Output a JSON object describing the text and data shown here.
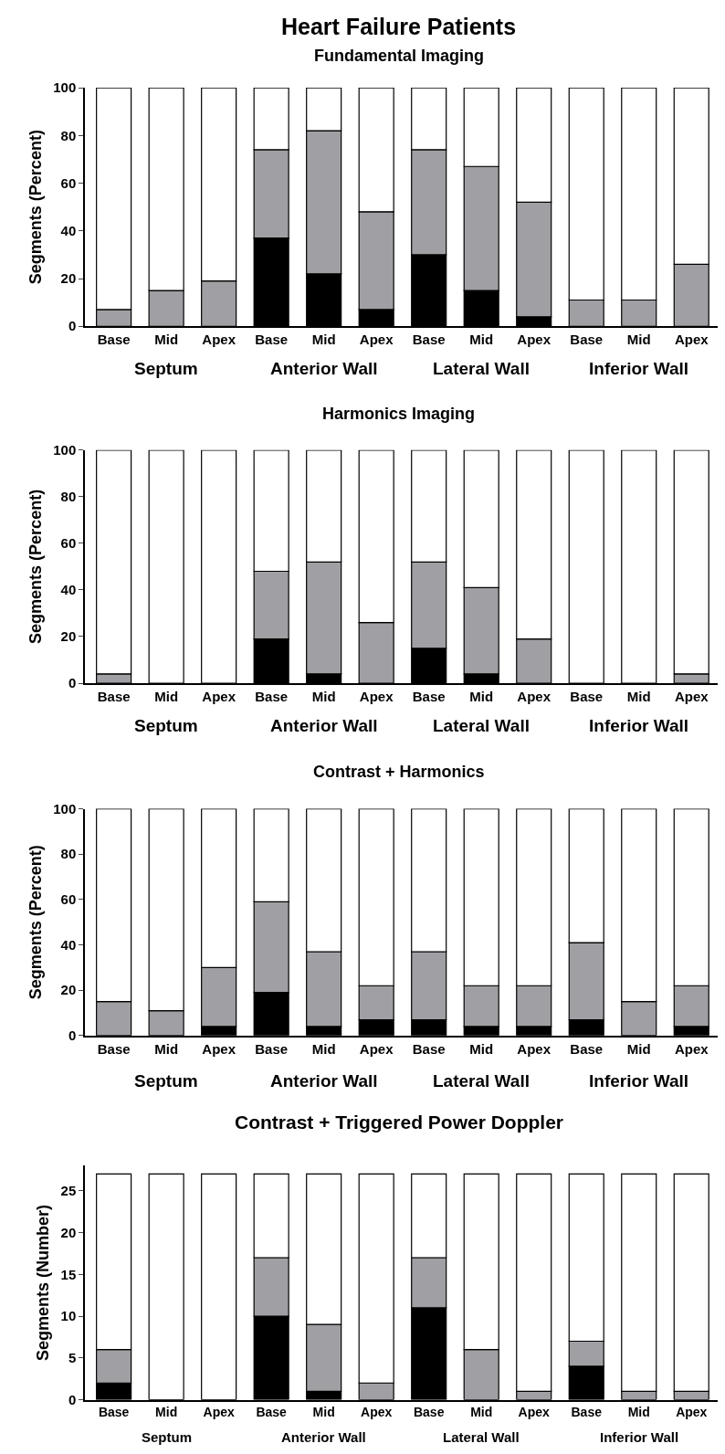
{
  "chart_data": [
    {
      "type": "bar",
      "stacked": true,
      "title": "Heart Failure Patients",
      "subtitle": "Fundamental Imaging",
      "ylabel": "Segments (Percent)",
      "ylim": [
        0,
        100
      ],
      "yticks": [
        0,
        20,
        40,
        60,
        80,
        100
      ],
      "categories": [
        "Base",
        "Mid",
        "Apex",
        "Base",
        "Mid",
        "Apex",
        "Base",
        "Mid",
        "Apex",
        "Base",
        "Mid",
        "Apex"
      ],
      "annotations": [
        "Septum",
        "Anterior Wall",
        "Lateral Wall",
        "Inferior Wall"
      ],
      "series": [
        {
          "color": "#000000",
          "values": [
            0,
            0,
            0,
            37,
            22,
            7,
            30,
            15,
            4,
            0,
            0,
            0
          ]
        },
        {
          "color": "#a0a0a4",
          "values": [
            7,
            15,
            19,
            37,
            60,
            41,
            44,
            52,
            48,
            11,
            11,
            26
          ]
        },
        {
          "color": "#ffffff",
          "values": [
            93,
            85,
            81,
            26,
            18,
            52,
            26,
            33,
            48,
            89,
            89,
            74
          ]
        }
      ]
    },
    {
      "type": "bar",
      "stacked": true,
      "title": "Harmonics Imaging",
      "ylabel": "Segments (Percent)",
      "ylim": [
        0,
        100
      ],
      "yticks": [
        0,
        20,
        40,
        60,
        80,
        100
      ],
      "categories": [
        "Base",
        "Mid",
        "Apex",
        "Base",
        "Mid",
        "Apex",
        "Base",
        "Mid",
        "Apex",
        "Base",
        "Mid",
        "Apex"
      ],
      "annotations": [
        "Septum",
        "Anterior Wall",
        "Lateral Wall",
        "Inferior Wall"
      ],
      "series": [
        {
          "color": "#000000",
          "values": [
            0,
            0,
            0,
            19,
            4,
            0,
            15,
            4,
            0,
            0,
            0,
            0
          ]
        },
        {
          "color": "#a0a0a4",
          "values": [
            4,
            0,
            0,
            29,
            48,
            26,
            37,
            37,
            19,
            0,
            0,
            4
          ]
        },
        {
          "color": "#ffffff",
          "values": [
            96,
            100,
            100,
            52,
            48,
            74,
            48,
            59,
            81,
            100,
            100,
            96
          ]
        }
      ]
    },
    {
      "type": "bar",
      "stacked": true,
      "title": "Contrast + Harmonics",
      "ylabel": "Segments (Percent)",
      "ylim": [
        0,
        100
      ],
      "yticks": [
        0,
        20,
        40,
        60,
        80,
        100
      ],
      "categories": [
        "Base",
        "Mid",
        "Apex",
        "Base",
        "Mid",
        "Apex",
        "Base",
        "Mid",
        "Apex",
        "Base",
        "Mid",
        "Apex"
      ],
      "annotations": [
        "Septum",
        "Anterior Wall",
        "Lateral Wall",
        "Inferior Wall"
      ],
      "series": [
        {
          "color": "#000000",
          "values": [
            0,
            0,
            4,
            19,
            4,
            7,
            7,
            4,
            4,
            7,
            0,
            4
          ]
        },
        {
          "color": "#a0a0a4",
          "values": [
            15,
            11,
            26,
            40,
            33,
            15,
            30,
            18,
            18,
            34,
            15,
            18
          ]
        },
        {
          "color": "#ffffff",
          "values": [
            85,
            89,
            70,
            41,
            63,
            78,
            63,
            78,
            78,
            59,
            85,
            78
          ]
        }
      ]
    },
    {
      "type": "bar",
      "stacked": true,
      "title": "Contrast + Triggered Power Doppler",
      "ylabel": "Segments (Number)",
      "ylim": [
        0,
        28
      ],
      "yticks": [
        0,
        5,
        10,
        15,
        20,
        25
      ],
      "categories": [
        "Base",
        "Mid",
        "Apex",
        "Base",
        "Mid",
        "Apex",
        "Base",
        "Mid",
        "Apex",
        "Base",
        "Mid",
        "Apex"
      ],
      "annotations": [
        "Septum",
        "Anterior Wall",
        "Lateral Wall",
        "Inferior Wall"
      ],
      "series": [
        {
          "color": "#000000",
          "values": [
            2,
            0,
            0,
            10,
            1,
            0,
            11,
            0,
            0,
            4,
            0,
            0
          ]
        },
        {
          "color": "#a0a0a4",
          "values": [
            4,
            0,
            0,
            7,
            8,
            2,
            6,
            6,
            1,
            3,
            1,
            1
          ]
        },
        {
          "color": "#ffffff",
          "values": [
            21,
            27,
            27,
            10,
            18,
            25,
            10,
            21,
            26,
            20,
            26,
            26
          ]
        }
      ]
    }
  ]
}
